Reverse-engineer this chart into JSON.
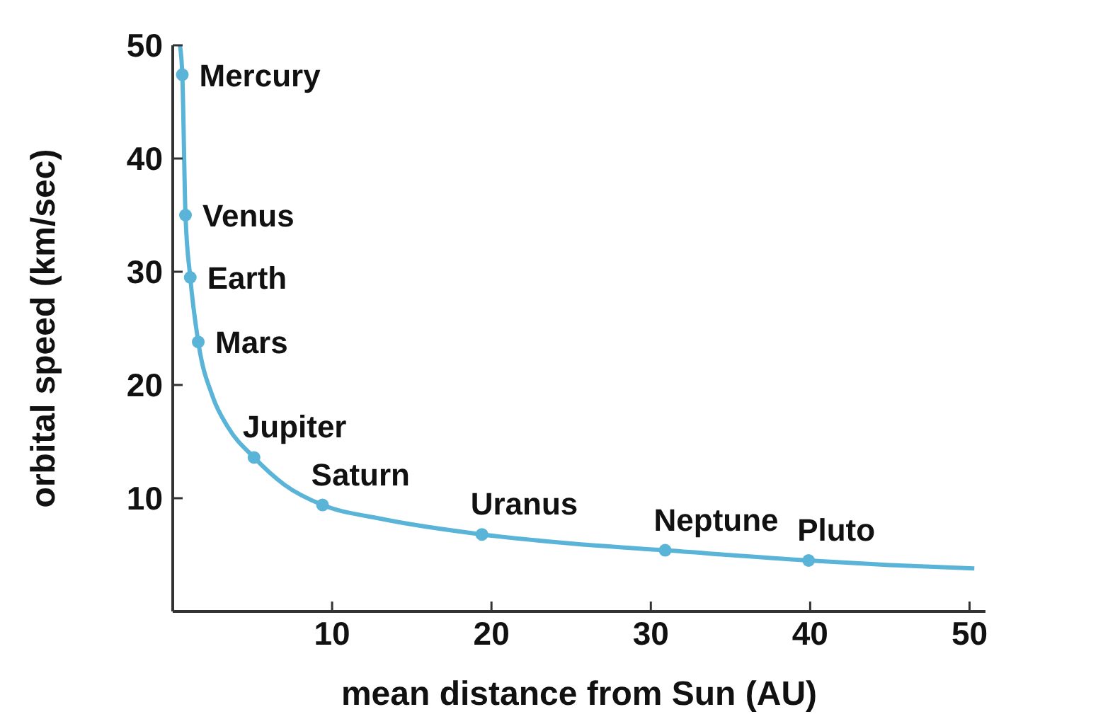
{
  "chart_data": {
    "type": "line",
    "xlabel": "mean distance from Sun (AU)",
    "ylabel": "orbital speed (km/sec)",
    "xlim": [
      0,
      51
    ],
    "ylim": [
      0,
      50
    ],
    "xticks": [
      10,
      20,
      30,
      40,
      50
    ],
    "yticks": [
      10,
      20,
      30,
      40,
      50
    ],
    "grid": false,
    "series": [
      {
        "color": "#5ab4d8",
        "marker": "none",
        "x": [
          0.45,
          0.6,
          0.8,
          1.1,
          1.6,
          2.5,
          3.5,
          5.1,
          7,
          9.4,
          13,
          19.4,
          25,
          30.9,
          39.9,
          45,
          50.3
        ],
        "values": [
          50,
          47.4,
          35,
          29.5,
          23.8,
          19,
          16.2,
          13.6,
          11.2,
          9.4,
          8.2,
          6.8,
          6,
          5.4,
          4.5,
          4.1,
          3.8
        ]
      },
      {
        "type": "scatter",
        "color": "#5ab4d8",
        "marker": "circle",
        "x": [
          0.6,
          0.8,
          1.1,
          1.6,
          5.1,
          9.4,
          19.4,
          30.9,
          39.9
        ],
        "values": [
          47.4,
          35,
          29.5,
          23.8,
          13.6,
          9.4,
          6.8,
          5.4,
          4.5
        ]
      }
    ],
    "annotations": [
      {
        "text": "Mercury",
        "x": 0.6,
        "y": 47.4
      },
      {
        "text": "Venus",
        "x": 0.8,
        "y": 35
      },
      {
        "text": "Earth",
        "x": 1.1,
        "y": 29.5
      },
      {
        "text": "Mars",
        "x": 1.6,
        "y": 23.8
      },
      {
        "text": "Jupiter",
        "x": 5.1,
        "y": 13.6
      },
      {
        "text": "Saturn",
        "x": 9.4,
        "y": 9.4
      },
      {
        "text": "Uranus",
        "x": 19.4,
        "y": 6.8
      },
      {
        "text": "Neptune",
        "x": 30.9,
        "y": 5.4
      },
      {
        "text": "Pluto",
        "x": 39.9,
        "y": 4.5
      }
    ]
  }
}
